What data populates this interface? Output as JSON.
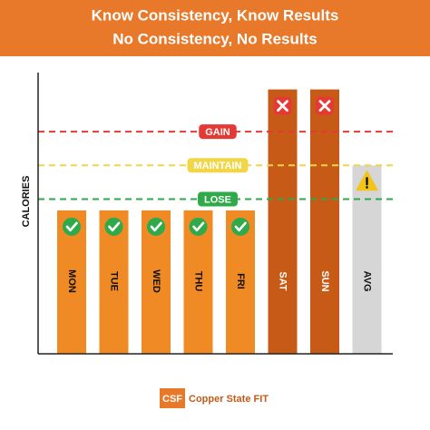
{
  "chart_data": {
    "type": "bar",
    "title": "Know Consistency, Know Results",
    "subtitle": "No Consistency, No Results",
    "y_label": "CALORIES",
    "categories": [
      "MON",
      "TUE",
      "WED",
      "THU",
      "FRI",
      "SAT",
      "SUN",
      "AVG"
    ],
    "values": [
      51,
      51,
      51,
      51,
      51,
      94,
      94,
      67
    ],
    "colors": [
      "#f08a24",
      "#f08a24",
      "#f08a24",
      "#f08a24",
      "#f08a24",
      "#c65a16",
      "#c65a16",
      "#d6d6d6"
    ],
    "label_colors": [
      "#111111",
      "#111111",
      "#111111",
      "#111111",
      "#111111",
      "#ffffff",
      "#ffffff",
      "#111111"
    ],
    "icons": [
      "check",
      "check",
      "check",
      "check",
      "check",
      "cross",
      "cross",
      "warning"
    ],
    "ylim": [
      0,
      100
    ],
    "reference_lines": [
      {
        "label": "GAIN",
        "value": 79,
        "color": "#e53935"
      },
      {
        "label": "MAINTAIN",
        "value": 67,
        "color": "#f2d649"
      },
      {
        "label": "LOSE",
        "value": 55,
        "color": "#2eaa4a"
      }
    ]
  },
  "footer": {
    "logo": "CSF",
    "brand": "Copper State FIT"
  }
}
